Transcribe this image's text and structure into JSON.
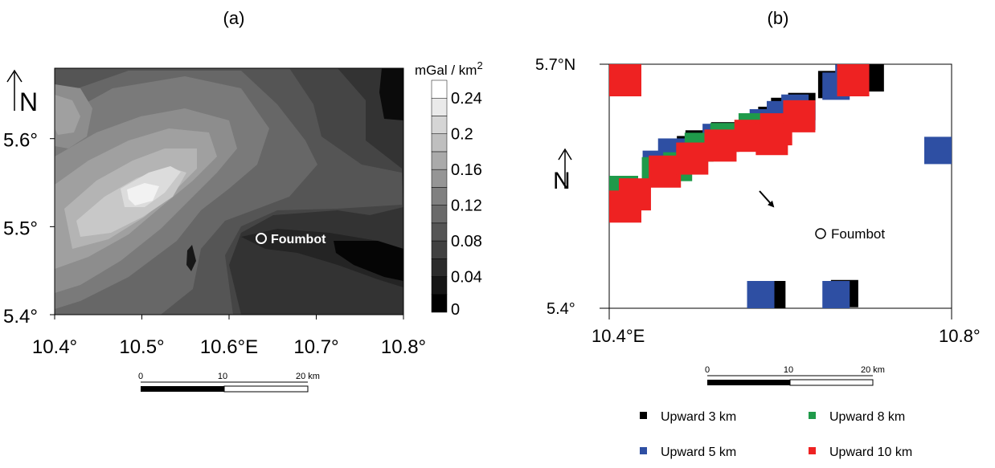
{
  "panel_a": {
    "label": "(a)",
    "north_letter": "N",
    "site_label": "Foumbot",
    "colorbar_title": "mGal / km",
    "colorbar_title_sup": "2",
    "scalebar_labels": [
      "0",
      "10",
      "20 km"
    ]
  },
  "panel_b": {
    "label": "(b)",
    "north_letter": "N",
    "site_label": "Foumbot",
    "scalebar_labels": [
      "0",
      "10",
      "20 km"
    ]
  },
  "colors": {
    "black": "#000000",
    "blue": "#2e4fa3",
    "green": "#1f9a4a",
    "red": "#ee2222",
    "site_marker": "#ffffff"
  },
  "chart_data": [
    {
      "type": "heatmap",
      "title": "(a)",
      "xlabel": "",
      "ylabel": "",
      "x_ticks": [
        10.4,
        10.5,
        10.6,
        10.7,
        10.8
      ],
      "x_tick_labels": [
        "10.4°",
        "10.5°",
        "10.6°E",
        "10.7°",
        "10.8°"
      ],
      "y_ticks": [
        5.4,
        5.5,
        5.6
      ],
      "y_tick_labels": [
        "5.4°",
        "5.5°",
        "5.6°"
      ],
      "xlim": [
        10.4,
        10.8
      ],
      "ylim": [
        5.4,
        5.68
      ],
      "colorbar": {
        "label": "mGal / km2",
        "levels": [
          0,
          0.02,
          0.04,
          0.06,
          0.08,
          0.1,
          0.12,
          0.14,
          0.16,
          0.18,
          0.2,
          0.22,
          0.24,
          0.26
        ],
        "tick_values": [
          0,
          0.04,
          0.08,
          0.12,
          0.16,
          0.2,
          0.24
        ],
        "tick_labels": [
          "0",
          "0.04",
          "0.08",
          "0.12",
          "0.16",
          "0.2",
          "0.24"
        ]
      },
      "annotations": [
        {
          "text": "Foumbot",
          "lon": 10.64,
          "lat": 5.495
        }
      ]
    },
    {
      "type": "scatter",
      "title": "(b)",
      "xlabel": "",
      "ylabel": "",
      "x_tick_labels": [
        "10.4°E",
        "10.8°"
      ],
      "y_tick_labels": [
        "5.4°",
        "5.7°N"
      ],
      "xlim": [
        10.4,
        10.8
      ],
      "ylim": [
        5.4,
        5.7
      ],
      "legend_position": "bottom",
      "series": [
        {
          "name": "Upward 3 km",
          "points": [
            [
              10.4,
              5.693
            ],
            [
              10.66,
              5.675
            ],
            [
              10.685,
              5.696
            ],
            [
              10.705,
              5.692
            ],
            [
              10.495,
              5.595
            ],
            [
              10.505,
              5.602
            ],
            [
              10.535,
              5.612
            ],
            [
              10.59,
              5.631
            ],
            [
              10.605,
              5.642
            ],
            [
              10.625,
              5.648
            ],
            [
              10.59,
              5.415
            ],
            [
              10.675,
              5.418
            ]
          ]
        },
        {
          "name": "Upward 5 km",
          "points": [
            [
              10.4,
              5.678
            ],
            [
              10.665,
              5.673
            ],
            [
              10.68,
              5.683
            ],
            [
              10.398,
              5.546
            ],
            [
              10.455,
              5.577
            ],
            [
              10.473,
              5.592
            ],
            [
              10.525,
              5.61
            ],
            [
              10.58,
              5.628
            ],
            [
              10.6,
              5.638
            ],
            [
              10.617,
              5.646
            ],
            [
              10.625,
              5.636
            ],
            [
              10.577,
              5.415
            ],
            [
              10.665,
              5.41
            ],
            [
              10.79,
              5.594
            ]
          ]
        },
        {
          "name": "Upward 8 km",
          "points": [
            [
              10.398,
              5.545
            ],
            [
              10.41,
              5.545
            ],
            [
              10.455,
              5.568
            ],
            [
              10.48,
              5.574
            ],
            [
              10.505,
              5.598
            ],
            [
              10.535,
              5.61
            ],
            [
              10.568,
              5.622
            ]
          ]
        },
        {
          "name": "Upward 10 km",
          "points": [
            [
              10.4,
              5.695
            ],
            [
              10.685,
              5.685
            ],
            [
              10.398,
              5.525
            ],
            [
              10.43,
              5.54
            ],
            [
              10.465,
              5.568
            ],
            [
              10.497,
              5.584
            ],
            [
              10.53,
              5.6
            ],
            [
              10.565,
              5.612
            ],
            [
              10.595,
              5.62
            ],
            [
              10.622,
              5.636
            ],
            [
              10.59,
              5.608
            ]
          ]
        }
      ],
      "annotations": [
        {
          "text": "Foumbot",
          "lon": 10.645,
          "lat": 5.493
        }
      ]
    }
  ]
}
